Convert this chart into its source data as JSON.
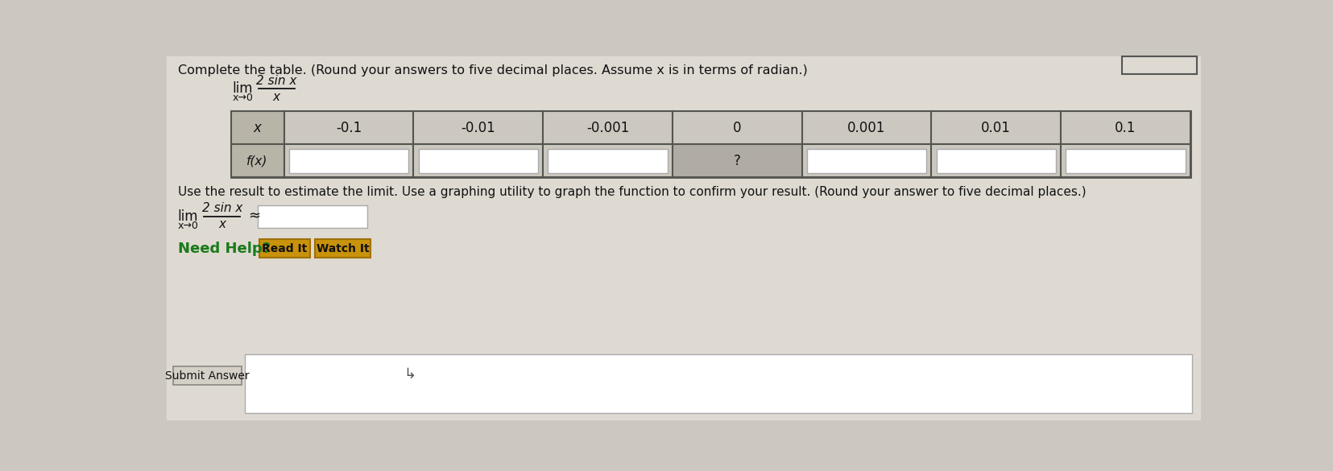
{
  "bg_color": "#ccc8c0",
  "page_bg": "#dedad2",
  "content_bg": "#dedad2",
  "white": "#ffffff",
  "title_text": "Complete the table. (Round your answers to five decimal places. Assume x is in terms of radian.)",
  "x_values": [
    "-0.1",
    "-0.01",
    "-0.001",
    "0",
    "0.001",
    "0.01",
    "0.1"
  ],
  "zero_index": 3,
  "use_result_text": "Use the result to estimate the limit. Use a graphing utility to graph the function to confirm your result. (Round your answer to five decimal places.)",
  "approx_symbol": "≈",
  "need_help_text": "Need Help?",
  "read_it_text": "Read It",
  "watch_it_text": "Watch It",
  "submit_text": "Submit Answer",
  "button_color": "#c8920a",
  "button_border": "#a07008",
  "need_help_color": "#1a7a1a",
  "header_cell_color": "#b8b4a8",
  "data_cell_color": "#ccc8c0",
  "zero_cell_color": "#b0aca4",
  "input_box_color": "#ffffff",
  "input_box_border": "#aaaaaa",
  "table_border_color": "#555550",
  "outer_border_color": "#999990",
  "top_right_box_border": "#555555",
  "top_right_box_bg": "#dedad2"
}
